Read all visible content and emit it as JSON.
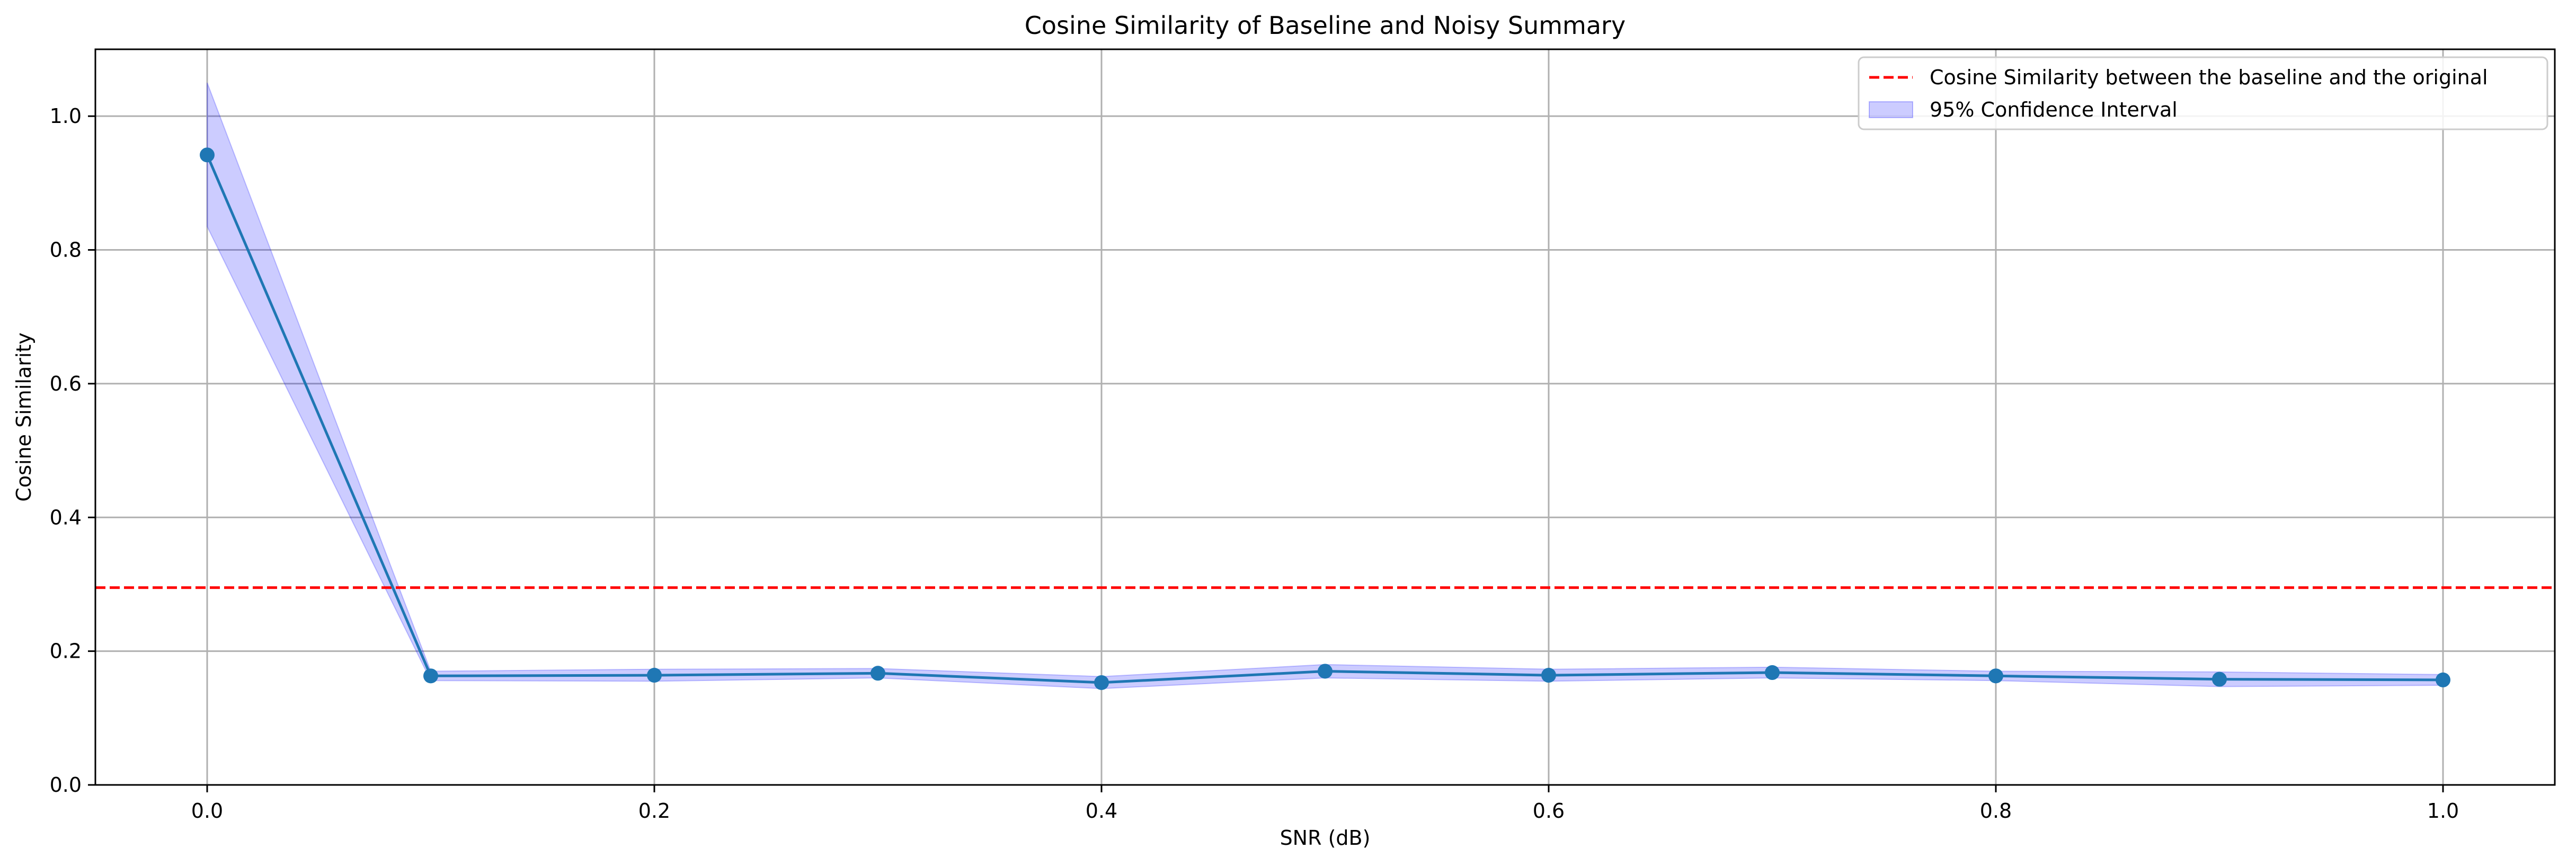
{
  "chart_data": {
    "type": "line",
    "title": "Cosine Similarity of Baseline and Noisy Summary",
    "xlabel": "SNR (dB)",
    "ylabel": "Cosine Similarity",
    "xlim": [
      -0.05,
      1.05
    ],
    "ylim": [
      0.0,
      1.1
    ],
    "xticks": [
      0.0,
      0.2,
      0.4,
      0.6,
      0.8,
      1.0
    ],
    "xtick_labels": [
      "0.0",
      "0.2",
      "0.4",
      "0.6",
      "0.8",
      "1.0"
    ],
    "yticks": [
      0.0,
      0.2,
      0.4,
      0.6,
      0.8,
      1.0
    ],
    "ytick_labels": [
      "0.0",
      "0.2",
      "0.4",
      "0.6",
      "0.8",
      "1.0"
    ],
    "grid": true,
    "legend_position": "top-right",
    "x": [
      0.0,
      0.1,
      0.2,
      0.3,
      0.4,
      0.5,
      0.6,
      0.7,
      0.8,
      0.9,
      1.0
    ],
    "series": [
      {
        "values": [
          0.942,
          0.163,
          0.164,
          0.167,
          0.153,
          0.17,
          0.164,
          0.168,
          0.163,
          0.158,
          0.157
        ],
        "ci_lower": [
          0.835,
          0.156,
          0.155,
          0.16,
          0.144,
          0.16,
          0.155,
          0.16,
          0.156,
          0.147,
          0.149
        ],
        "ci_upper": [
          1.05,
          0.17,
          0.173,
          0.174,
          0.162,
          0.18,
          0.173,
          0.176,
          0.17,
          0.169,
          0.165
        ],
        "color": "#1f77b4",
        "ci_color": "#0000ff"
      }
    ],
    "reference_line": {
      "name": "Cosine Similarity between the baseline and the original",
      "y": 0.295,
      "color": "#ff0000",
      "style": "dashed"
    },
    "legend": [
      {
        "label": "Cosine Similarity between the baseline and the original",
        "kind": "dashed-line",
        "color": "#ff0000"
      },
      {
        "label": "95% Confidence Interval",
        "kind": "patch",
        "color": "#0000ff"
      }
    ]
  }
}
